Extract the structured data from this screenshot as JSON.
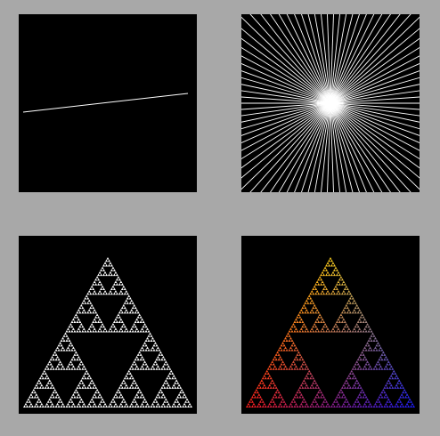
{
  "window": {
    "background_color": "#a8a8a8"
  },
  "panels": [
    {
      "id": "line",
      "kind": "single-line",
      "background_color": "#000000",
      "stroke_color": "#ffffff"
    },
    {
      "id": "burst",
      "kind": "radial-line-burst",
      "background_color": "#000000",
      "stroke_color": "#ffffff",
      "ray_count": 90
    },
    {
      "id": "sierpinski-white",
      "kind": "sierpinski-triangle",
      "background_color": "#000000",
      "fill_color": "#ffffff",
      "depth": 6
    },
    {
      "id": "sierpinski-gradient",
      "kind": "sierpinski-triangle",
      "background_color": "#000000",
      "depth": 6,
      "gradient_colors": {
        "top": "#ffd21c",
        "bottom_left": "#ff1c1c",
        "bottom_right": "#1c1cff"
      }
    }
  ]
}
